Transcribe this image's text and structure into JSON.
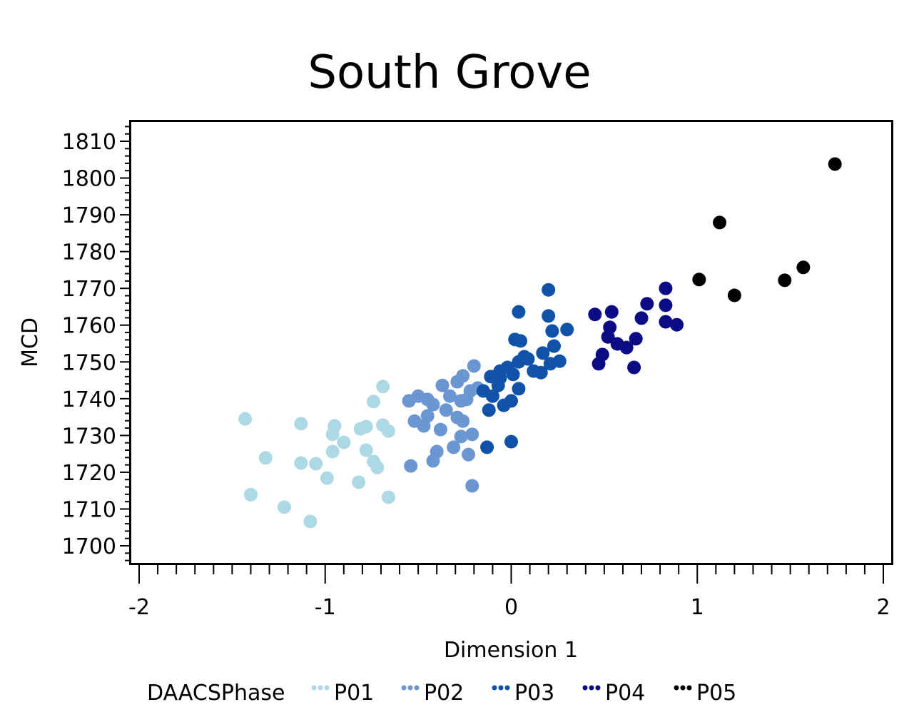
{
  "chart_data": {
    "type": "scatter",
    "title": "South Grove",
    "xlabel": "Dimension 1",
    "ylabel": "MCD",
    "xlim": [
      -2,
      2
    ],
    "ylim": [
      1695,
      1815
    ],
    "xticks": [
      "-2",
      "-1",
      "0",
      "1",
      "2"
    ],
    "yticks": [
      "1700",
      "1710",
      "1720",
      "1730",
      "1740",
      "1750",
      "1760",
      "1770",
      "1780",
      "1790",
      "1800",
      "1810"
    ],
    "grid": false,
    "legend": {
      "title": "DAACSPhase",
      "placement": "bottom"
    },
    "series": [
      {
        "name": "P01",
        "color": "#add8e6",
        "points": [
          [
            -1.43,
            1734.5
          ],
          [
            -1.4,
            1713.9
          ],
          [
            -1.32,
            1723.9
          ],
          [
            -1.22,
            1710.5
          ],
          [
            -1.13,
            1733.2
          ],
          [
            -1.13,
            1722.5
          ],
          [
            -1.08,
            1706.6
          ],
          [
            -1.05,
            1722.3
          ],
          [
            -0.99,
            1718.4
          ],
          [
            -0.96,
            1725.6
          ],
          [
            -0.96,
            1730.3
          ],
          [
            -0.95,
            1732.6
          ],
          [
            -0.9,
            1728.1
          ],
          [
            -0.82,
            1717.3
          ],
          [
            -0.81,
            1731.8
          ],
          [
            -0.78,
            1726.0
          ],
          [
            -0.78,
            1732.4
          ],
          [
            -0.74,
            1722.9
          ],
          [
            -0.72,
            1721.3
          ],
          [
            -0.74,
            1739.2
          ],
          [
            -0.69,
            1743.3
          ],
          [
            -0.69,
            1732.8
          ],
          [
            -0.66,
            1713.2
          ],
          [
            -0.66,
            1731.2
          ]
        ]
      },
      {
        "name": "P02",
        "color": "#6a96d2",
        "points": [
          [
            -0.54,
            1721.7
          ],
          [
            -0.42,
            1723.1
          ],
          [
            -0.4,
            1725.6
          ],
          [
            -0.31,
            1726.8
          ],
          [
            -0.23,
            1724.8
          ],
          [
            -0.21,
            1716.3
          ],
          [
            -0.21,
            1730.3
          ],
          [
            -0.38,
            1731.6
          ],
          [
            -0.27,
            1729.7
          ],
          [
            -0.47,
            1732.6
          ],
          [
            -0.52,
            1733.9
          ],
          [
            -0.55,
            1739.4
          ],
          [
            -0.5,
            1740.7
          ],
          [
            -0.45,
            1735.3
          ],
          [
            -0.42,
            1738.4
          ],
          [
            -0.37,
            1743.6
          ],
          [
            -0.33,
            1740.7
          ],
          [
            -0.29,
            1734.9
          ],
          [
            -0.26,
            1733.9
          ],
          [
            -0.27,
            1739.4
          ],
          [
            -0.24,
            1739.8
          ],
          [
            -0.26,
            1746.2
          ],
          [
            -0.2,
            1748.9
          ],
          [
            -0.18,
            1742.9
          ],
          [
            -0.29,
            1744.6
          ],
          [
            -0.45,
            1739.8
          ],
          [
            -0.35,
            1736.9
          ],
          [
            -0.22,
            1742.1
          ]
        ]
      },
      {
        "name": "P03",
        "color": "#0f52a8",
        "points": [
          [
            -0.13,
            1726.8
          ],
          [
            0.0,
            1728.3
          ],
          [
            -0.12,
            1736.9
          ],
          [
            -0.04,
            1738.2
          ],
          [
            0.0,
            1739.4
          ],
          [
            0.04,
            1742.7
          ],
          [
            0.04,
            1750.0
          ],
          [
            0.04,
            1763.6
          ],
          [
            0.02,
            1756.1
          ],
          [
            0.05,
            1755.7
          ],
          [
            0.2,
            1769.6
          ],
          [
            0.2,
            1762.5
          ],
          [
            0.22,
            1758.4
          ],
          [
            0.23,
            1754.3
          ],
          [
            0.3,
            1758.8
          ],
          [
            0.26,
            1750.2
          ],
          [
            0.17,
            1752.4
          ],
          [
            0.09,
            1750.8
          ],
          [
            0.12,
            1747.5
          ],
          [
            0.16,
            1747.1
          ],
          [
            -0.1,
            1740.7
          ],
          [
            -0.07,
            1743.6
          ],
          [
            -0.06,
            1747.5
          ],
          [
            -0.02,
            1748.5
          ],
          [
            0.01,
            1746.6
          ],
          [
            -0.06,
            1745.6
          ],
          [
            -0.11,
            1746.0
          ],
          [
            0.07,
            1751.4
          ],
          [
            0.21,
            1749.5
          ],
          [
            -0.15,
            1742.1
          ]
        ]
      },
      {
        "name": "P04",
        "color": "#0b0b86",
        "points": [
          [
            0.45,
            1762.9
          ],
          [
            0.54,
            1763.6
          ],
          [
            0.53,
            1759.4
          ],
          [
            0.52,
            1756.8
          ],
          [
            0.57,
            1754.9
          ],
          [
            0.62,
            1753.9
          ],
          [
            0.67,
            1756.3
          ],
          [
            0.49,
            1752.0
          ],
          [
            0.47,
            1749.5
          ],
          [
            0.66,
            1748.5
          ],
          [
            0.7,
            1761.9
          ],
          [
            0.73,
            1765.8
          ],
          [
            0.83,
            1770.0
          ],
          [
            0.83,
            1765.4
          ],
          [
            0.83,
            1760.9
          ],
          [
            0.89,
            1760.1
          ]
        ]
      },
      {
        "name": "P05",
        "color": "#000000",
        "points": [
          [
            1.74,
            1803.8
          ],
          [
            1.12,
            1787.9
          ],
          [
            1.01,
            1772.4
          ],
          [
            1.2,
            1768.1
          ],
          [
            1.47,
            1772.2
          ],
          [
            1.57,
            1775.7
          ]
        ]
      }
    ]
  }
}
